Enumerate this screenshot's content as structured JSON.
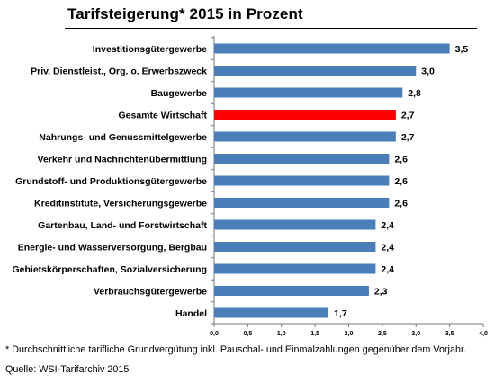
{
  "chart_data": {
    "type": "bar",
    "orientation": "horizontal",
    "title": "Tarifsteigerung* 2015 in Prozent",
    "categories": [
      "Investitionsgütergewerbe",
      "Priv. Dienstleist., Org. o. Erwerbszweck",
      "Baugewerbe",
      "Gesamte Wirtschaft",
      "Nahrungs- und Genussmittelgewerbe",
      "Verkehr und Nachrichtenübermittlung",
      "Grundstoff- und Produktionsgütergewerbe",
      "Kreditinstitute, Versicherungsgewerbe",
      "Gartenbau, Land- und Forstwirtschaft",
      "Energie- und Wasserversorgung, Bergbau",
      "Gebietskörperschaften, Sozialversicherung",
      "Verbrauchsgütergewerbe",
      "Handel"
    ],
    "values": [
      3.5,
      3.0,
      2.8,
      2.7,
      2.7,
      2.6,
      2.6,
      2.6,
      2.4,
      2.4,
      2.4,
      2.3,
      1.7
    ],
    "value_labels": [
      "3,5",
      "3,0",
      "2,8",
      "2,7",
      "2,7",
      "2,6",
      "2,6",
      "2,6",
      "2,4",
      "2,4",
      "2,4",
      "2,3",
      "1,7"
    ],
    "highlight_index": 3,
    "xlim": [
      0,
      4.0
    ],
    "x_ticks": [
      "0,0",
      "0,5",
      "1,0",
      "1,5",
      "2,0",
      "2,5",
      "3,0",
      "3,5",
      "4,0"
    ],
    "grid": false,
    "colors": {
      "bar": "#4a7ebb",
      "highlight": "#ff0000"
    }
  },
  "footnote": "* Durchschnittliche tarifliche Grundvergütung inkl. Pauschal- und Einmalzahlungen gegenüber dem Vorjahr.",
  "source": "Quelle: WSI-Tarifarchiv 2015"
}
